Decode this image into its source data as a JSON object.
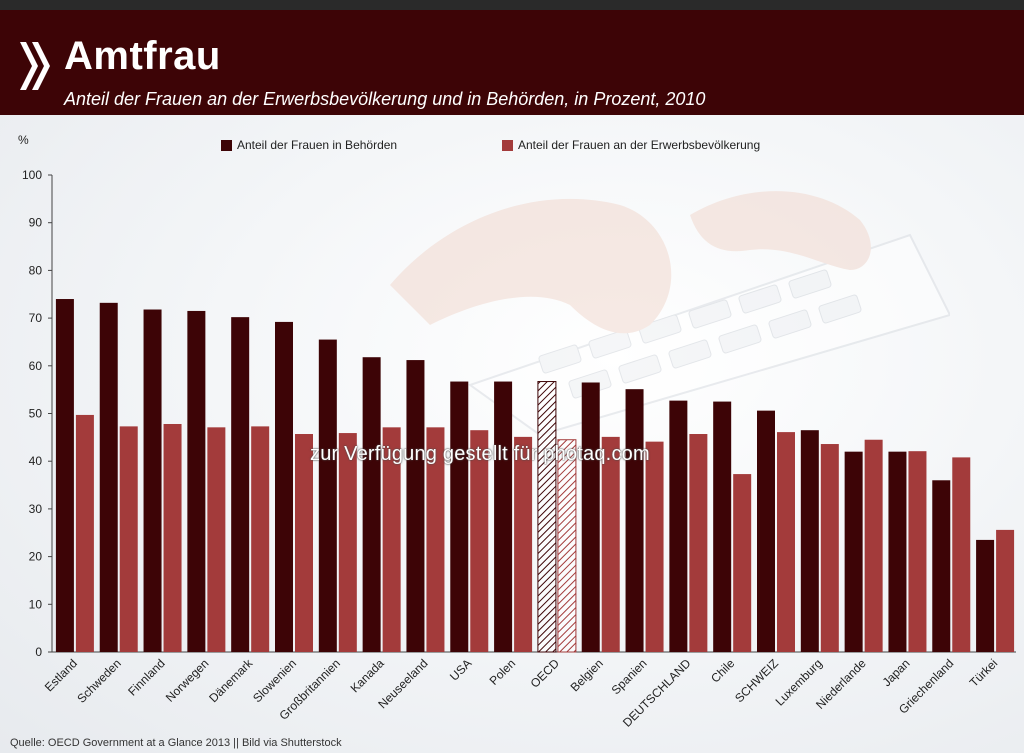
{
  "header": {
    "title": "Amtfrau",
    "subtitle": "Anteil der Frauen an der Erwerbsbevölkerung und in Behörden, in Prozent, 2010"
  },
  "source": "Quelle: OECD Government at a Glance 2013 || Bild via Shutterstock",
  "watermark": "zur Verfügung gestellt für photaq.com",
  "chart_data": {
    "type": "bar",
    "ylabel": "%",
    "ylim": [
      0,
      100
    ],
    "yticks": [
      0,
      10,
      20,
      30,
      40,
      50,
      60,
      70,
      80,
      90,
      100
    ],
    "grid": false,
    "legend_position": "top",
    "categories": [
      "Estland",
      "Schweden",
      "Finnland",
      "Norwegen",
      "Dänemark",
      "Slowenien",
      "Großbritannien",
      "Kanada",
      "Neuseeland",
      "USA",
      "Polen",
      "OECD",
      "Belgien",
      "Spanien",
      "DEUTSCHLAND",
      "Chile",
      "SCHWEIZ",
      "Luxemburg",
      "Niederlande",
      "Japan",
      "Griechenland",
      "Türkei"
    ],
    "highlight_category": "OECD",
    "series": [
      {
        "name": "Anteil der Frauen in Behörden",
        "color": "#3d0406",
        "values": [
          74,
          73.2,
          71.8,
          71.5,
          70.2,
          69.2,
          65.5,
          61.8,
          61.2,
          56.7,
          56.7,
          56.7,
          56.5,
          55.1,
          52.7,
          52.5,
          50.6,
          46.5,
          42,
          42,
          36,
          23.5
        ]
      },
      {
        "name": "Anteil der Frauen an der Erwerbsbevölkerung",
        "color": "#a33b3b",
        "values": [
          49.7,
          47.3,
          47.8,
          47.1,
          47.3,
          45.7,
          45.9,
          47.1,
          47.1,
          46.5,
          45.1,
          44.5,
          45.1,
          44.1,
          45.7,
          37.3,
          46.1,
          43.6,
          44.5,
          42.1,
          40.8,
          25.6
        ]
      }
    ]
  }
}
